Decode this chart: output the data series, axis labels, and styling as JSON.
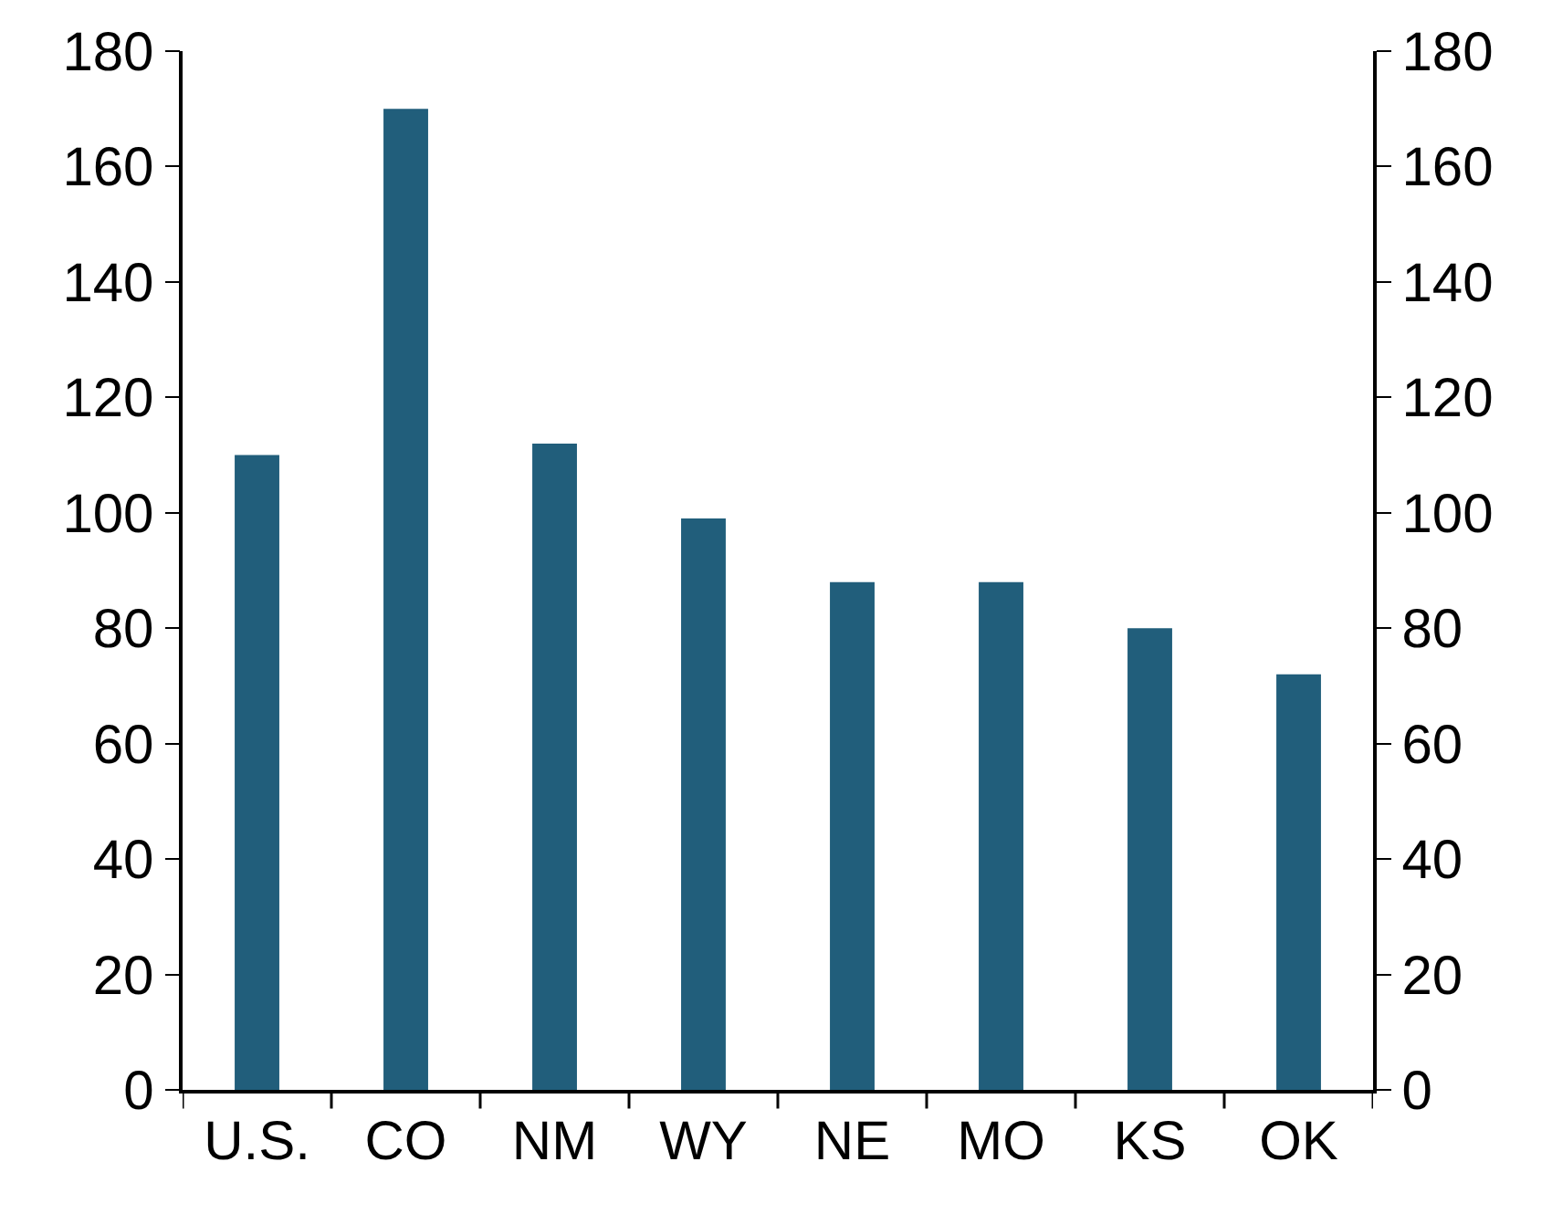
{
  "chart_data": {
    "type": "bar",
    "categories": [
      "U.S.",
      "CO",
      "NM",
      "WY",
      "NE",
      "MO",
      "KS",
      "OK"
    ],
    "series": [
      {
        "color": "#215e7b",
        "values": [
          110,
          170,
          112,
          99,
          88,
          88,
          80,
          72
        ]
      }
    ],
    "ylim": [
      0,
      180
    ],
    "yticks": [
      0,
      20,
      40,
      60,
      80,
      100,
      120,
      140,
      160,
      180
    ],
    "y2lim": [
      0,
      180
    ],
    "y2ticks": [
      0,
      20,
      40,
      60,
      80,
      100,
      120,
      140,
      160,
      180
    ]
  }
}
